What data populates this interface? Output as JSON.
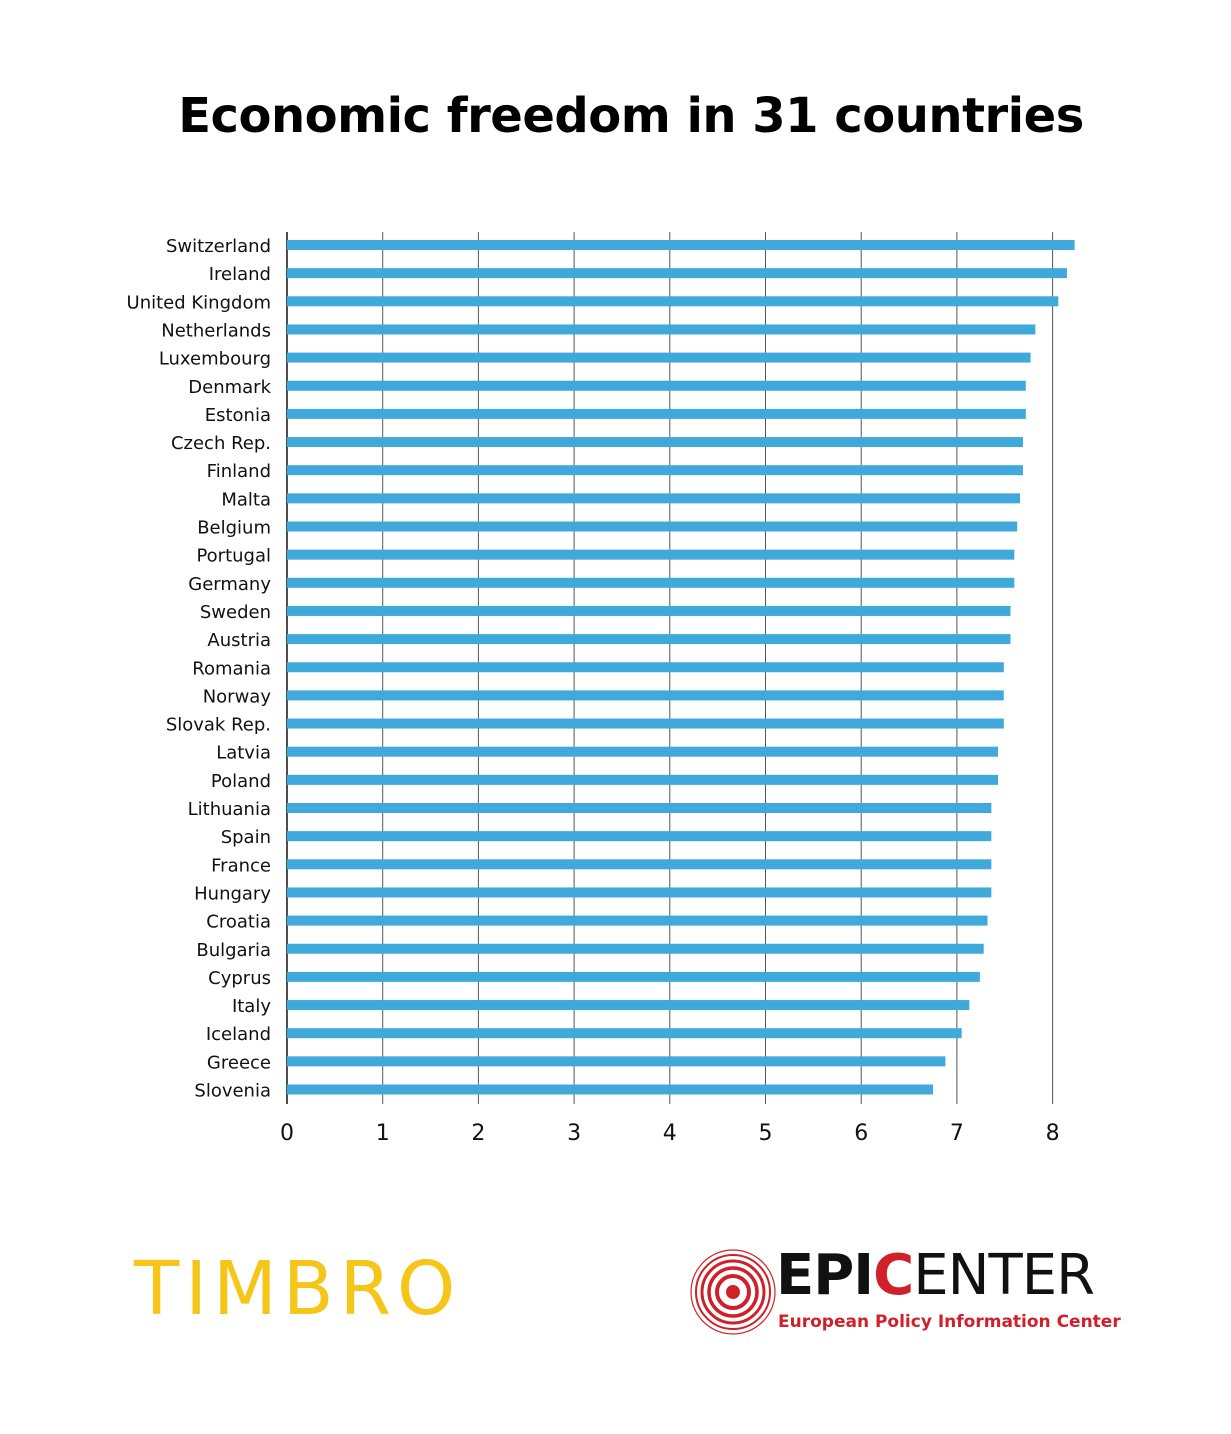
{
  "title": "Economic freedom in 31 countries",
  "chart_data": {
    "type": "bar",
    "orientation": "horizontal",
    "title": "Economic freedom in 31 countries",
    "xlabel": "",
    "ylabel": "",
    "xlim": [
      0,
      8.4
    ],
    "xticks": [
      0,
      1,
      2,
      3,
      4,
      5,
      6,
      7,
      8
    ],
    "grid": true,
    "bar_color": "#3fa9dc",
    "categories": [
      "Switzerland",
      "Ireland",
      "United Kingdom",
      "Netherlands",
      "Luxembourg",
      "Denmark",
      "Estonia",
      "Czech Rep.",
      "Finland",
      "Malta",
      "Belgium",
      "Portugal",
      "Germany",
      "Sweden",
      "Austria",
      "Romania",
      "Norway",
      "Slovak Rep.",
      "Latvia",
      "Poland",
      "Lithuania",
      "Spain",
      "France",
      "Hungary",
      "Croatia",
      "Bulgaria",
      "Cyprus",
      "Italy",
      "Iceland",
      "Greece",
      "Slovenia"
    ],
    "values": [
      8.23,
      8.15,
      8.06,
      7.82,
      7.77,
      7.72,
      7.72,
      7.69,
      7.69,
      7.66,
      7.63,
      7.6,
      7.6,
      7.56,
      7.56,
      7.49,
      7.49,
      7.49,
      7.43,
      7.43,
      7.36,
      7.36,
      7.36,
      7.36,
      7.32,
      7.28,
      7.24,
      7.13,
      7.05,
      6.88,
      6.75
    ]
  },
  "logos": {
    "timbro": "TIMBRO",
    "epicenter_epi": "EPI",
    "epicenter_c": "C",
    "epicenter_enter": "ENTER",
    "epicenter_subtitle": "European Policy Information Center"
  }
}
